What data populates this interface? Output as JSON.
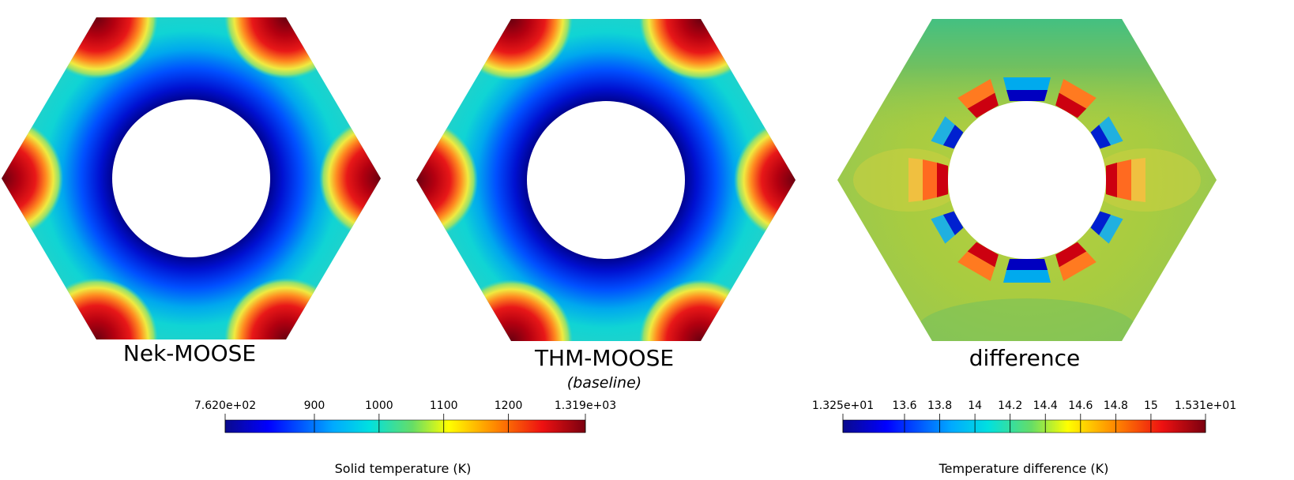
{
  "panels": [
    {
      "label": "Nek-MOOSE",
      "sublabel": ""
    },
    {
      "label": "THM-MOOSE",
      "sublabel": "(baseline)"
    },
    {
      "label": "difference",
      "sublabel": ""
    }
  ],
  "colorbars": [
    {
      "title": "Solid temperature (K)",
      "ticks": [
        "7.620e+02",
        "900",
        "1000",
        "1100",
        "1200",
        "1.319e+03"
      ],
      "tick_values": [
        762,
        900,
        1000,
        1100,
        1200,
        1319
      ],
      "range": [
        762,
        1319
      ]
    },
    {
      "title": "Temperature difference (K)",
      "ticks": [
        "1.325e+01",
        "13.6",
        "13.8",
        "14",
        "14.2",
        "14.4",
        "14.6",
        "14.8",
        "15",
        "1.531e+01"
      ],
      "tick_values": [
        13.25,
        13.6,
        13.8,
        14,
        14.2,
        14.4,
        14.6,
        14.8,
        15,
        15.31
      ],
      "range": [
        13.25,
        15.31
      ]
    }
  ],
  "colormap": [
    "#0a0a8c",
    "#0000ff",
    "#00aaff",
    "#00e0e0",
    "#66dd66",
    "#ffff00",
    "#ff8800",
    "#ee1111",
    "#7a0010"
  ]
}
